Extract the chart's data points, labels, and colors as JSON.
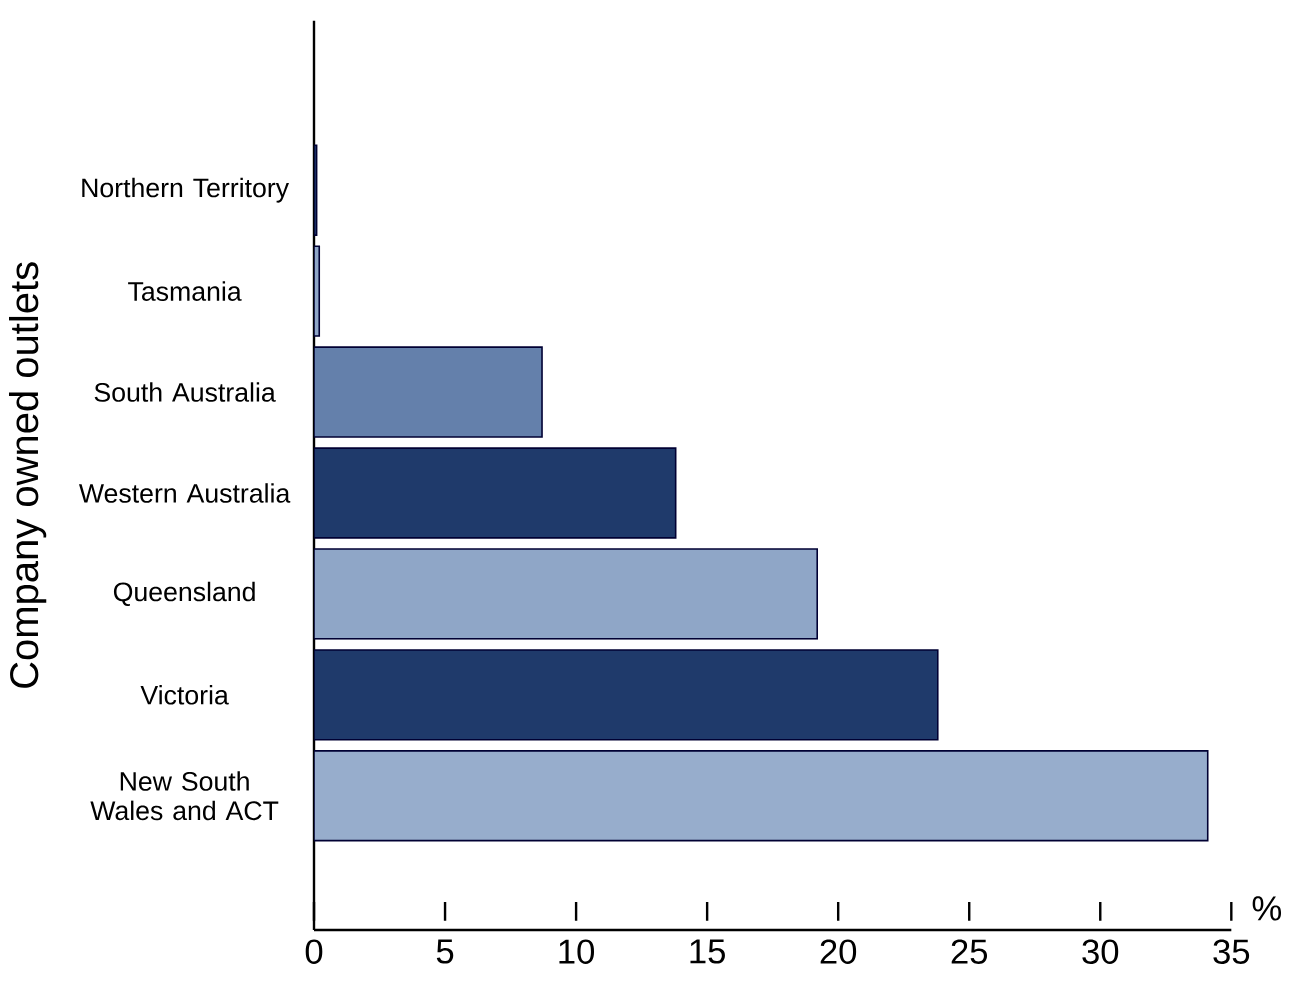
{
  "chart_data": {
    "type": "bar",
    "orientation": "horizontal",
    "ylabel": "Company owned outlets",
    "xlabel": "%",
    "categories": [
      "Northern Territory",
      "Tasmania",
      "South Australia",
      "Western Australia",
      "Queensland",
      "Victoria",
      "New South Wales and ACT"
    ],
    "values": [
      0.1,
      0.2,
      8.7,
      13.8,
      19.2,
      23.8,
      34.1
    ],
    "colors": [
      "#1f3a6b",
      "#8fa6c7",
      "#6480ab",
      "#1f3a6b",
      "#8fa6c7",
      "#1f3a6b",
      "#97adcc"
    ],
    "xlim": [
      0,
      35
    ],
    "xticks": [
      0,
      5,
      10,
      15,
      20,
      25,
      30,
      35
    ],
    "grid": false
  }
}
